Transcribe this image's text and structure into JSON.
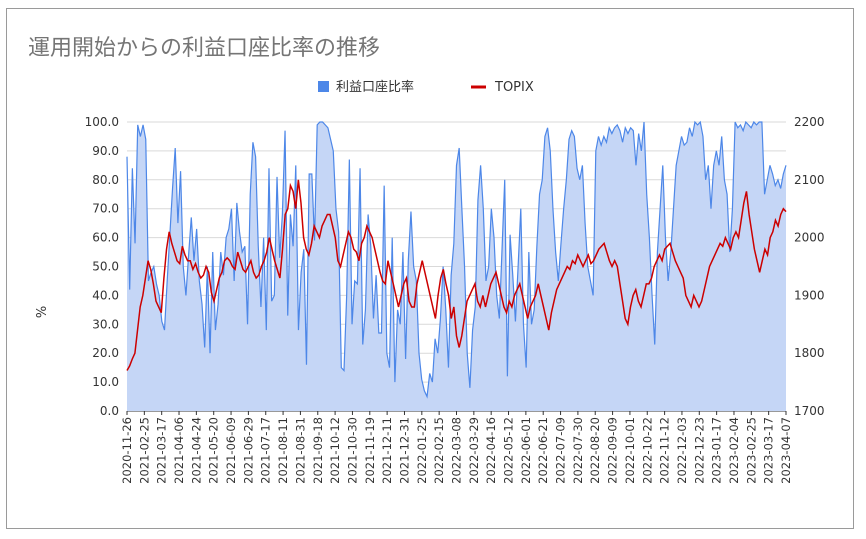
{
  "chart_data": {
    "type": "area+line",
    "title": "運用開始からの利益口座比率の推移",
    "legend_position": "top-center",
    "grid": true,
    "ylabel_left": "%",
    "ylim_left": [
      0,
      100
    ],
    "yticks_left": [
      "0.0",
      "10.0",
      "20.0",
      "30.0",
      "40.0",
      "50.0",
      "60.0",
      "70.0",
      "80.0",
      "90.0",
      "100.0"
    ],
    "ylim_right": [
      1700,
      2200
    ],
    "yticks_right": [
      "1700",
      "1800",
      "1900",
      "2000",
      "2100",
      "2200"
    ],
    "x_tick_labels": [
      "2020-11-26",
      "2021-02-25",
      "2021-03-17",
      "2021-04-06",
      "2021-04-24",
      "2021-05-20",
      "2021-06-09",
      "2021-06-29",
      "2021-07-17",
      "2021-08-11",
      "2021-08-31",
      "2021-09-18",
      "2021-10-12",
      "2021-10-30",
      "2021-11-19",
      "2021-12-11",
      "2021-12-31",
      "2022-01-25",
      "2022-02-15",
      "2022-03-08",
      "2022-03-29",
      "2022-04-16",
      "2022-05-12",
      "2022-06-01",
      "2022-06-21",
      "2022-07-09",
      "2022-07-30",
      "2022-08-20",
      "2022-09-09",
      "2022-10-01",
      "2022-10-22",
      "2022-11-12",
      "2022-12-03",
      "2022-12-23",
      "2023-01-17",
      "2023-02-04",
      "2023-02-25",
      "2023-03-17",
      "2023-04-07"
    ],
    "series": [
      {
        "name": "利益口座比率",
        "axis": "left",
        "color": "#4d87e8",
        "fill": "#c5d6f6",
        "values": [
          88,
          42,
          84,
          58,
          99,
          95,
          99,
          94,
          45,
          48,
          50,
          44,
          40,
          31,
          28,
          45,
          61,
          77,
          91,
          65,
          83,
          50,
          40,
          54,
          67,
          52,
          63,
          45,
          37,
          22,
          50,
          20,
          55,
          28,
          37,
          55,
          47,
          60,
          63,
          70,
          45,
          72,
          62,
          55,
          57,
          30,
          75,
          93,
          88,
          57,
          36,
          60,
          28,
          84,
          38,
          40,
          81,
          53,
          68,
          97,
          33,
          68,
          57,
          85,
          28,
          48,
          56,
          16,
          82,
          82,
          59,
          99,
          100,
          100,
          99,
          98,
          94,
          90,
          70,
          62,
          15,
          14,
          40,
          87,
          30,
          45,
          44,
          84,
          23,
          35,
          68,
          57,
          32,
          47,
          27,
          27,
          78,
          20,
          15,
          60,
          10,
          35,
          30,
          55,
          18,
          52,
          69,
          50,
          45,
          20,
          11,
          7,
          5,
          13,
          10,
          25,
          20,
          32,
          50,
          35,
          15,
          47,
          58,
          85,
          91,
          70,
          50,
          20,
          8,
          28,
          36,
          73,
          85,
          70,
          45,
          50,
          70,
          60,
          40,
          32,
          56,
          80,
          12,
          61,
          47,
          31,
          50,
          70,
          30,
          15,
          55,
          30,
          35,
          57,
          75,
          80,
          95,
          98,
          90,
          70,
          55,
          45,
          58,
          70,
          80,
          94,
          97,
          95,
          84,
          80,
          85,
          65,
          50,
          45,
          40,
          90,
          95,
          92,
          95,
          93,
          98,
          96,
          98,
          99,
          97,
          93,
          98,
          96,
          98,
          97,
          85,
          96,
          90,
          100,
          75,
          60,
          40,
          23,
          55,
          70,
          85,
          60,
          45,
          55,
          70,
          85,
          90,
          95,
          92,
          93,
          98,
          95,
          100,
          99,
          100,
          95,
          80,
          85,
          70,
          85,
          90,
          85,
          95,
          80,
          75,
          55,
          70,
          100,
          98,
          99,
          97,
          100,
          99,
          98,
          100,
          99,
          100,
          100,
          75,
          80,
          85,
          82,
          78,
          80,
          77,
          82,
          85
        ]
      },
      {
        "name": "TOPIX",
        "axis": "right",
        "color": "#cc0000",
        "values": [
          1770,
          1778,
          1790,
          1800,
          1840,
          1880,
          1900,
          1930,
          1960,
          1945,
          1920,
          1890,
          1880,
          1870,
          1930,
          1980,
          2010,
          1990,
          1975,
          1960,
          1955,
          1985,
          1970,
          1960,
          1960,
          1945,
          1955,
          1940,
          1930,
          1935,
          1950,
          1940,
          1905,
          1890,
          1910,
          1930,
          1940,
          1960,
          1965,
          1960,
          1950,
          1945,
          1975,
          1960,
          1945,
          1940,
          1950,
          1960,
          1940,
          1930,
          1935,
          1950,
          1960,
          1975,
          2000,
          1980,
          1960,
          1945,
          1930,
          1980,
          2040,
          2050,
          2090,
          2080,
          2050,
          2100,
          2060,
          2000,
          1980,
          1970,
          1990,
          2020,
          2010,
          2000,
          2020,
          2030,
          2040,
          2040,
          2020,
          2000,
          1960,
          1950,
          1970,
          1990,
          2010,
          2000,
          1980,
          1975,
          1960,
          1990,
          2000,
          2020,
          2010,
          2000,
          1980,
          1960,
          1940,
          1925,
          1920,
          1960,
          1940,
          1920,
          1900,
          1880,
          1900,
          1920,
          1930,
          1890,
          1880,
          1880,
          1920,
          1940,
          1960,
          1940,
          1920,
          1900,
          1880,
          1860,
          1900,
          1930,
          1945,
          1920,
          1900,
          1860,
          1880,
          1830,
          1810,
          1830,
          1860,
          1890,
          1900,
          1910,
          1920,
          1890,
          1880,
          1900,
          1880,
          1900,
          1920,
          1930,
          1940,
          1920,
          1900,
          1880,
          1870,
          1890,
          1880,
          1900,
          1910,
          1920,
          1900,
          1880,
          1860,
          1880,
          1890,
          1900,
          1920,
          1900,
          1880,
          1860,
          1840,
          1870,
          1890,
          1910,
          1920,
          1930,
          1940,
          1950,
          1945,
          1960,
          1955,
          1970,
          1960,
          1950,
          1960,
          1970,
          1955,
          1960,
          1970,
          1980,
          1985,
          1990,
          1975,
          1960,
          1950,
          1960,
          1950,
          1920,
          1890,
          1860,
          1850,
          1880,
          1900,
          1910,
          1890,
          1880,
          1900,
          1920,
          1920,
          1930,
          1950,
          1960,
          1970,
          1960,
          1980,
          1985,
          1990,
          1975,
          1960,
          1950,
          1940,
          1930,
          1900,
          1890,
          1880,
          1900,
          1890,
          1880,
          1890,
          1910,
          1930,
          1950,
          1960,
          1970,
          1980,
          1990,
          1985,
          2000,
          1990,
          1980,
          2000,
          2010,
          2000,
          2030,
          2060,
          2080,
          2040,
          2010,
          1980,
          1960,
          1940,
          1960,
          1980,
          1970,
          2000,
          2010,
          2030,
          2020,
          2040,
          2050,
          2045
        ]
      }
    ]
  }
}
